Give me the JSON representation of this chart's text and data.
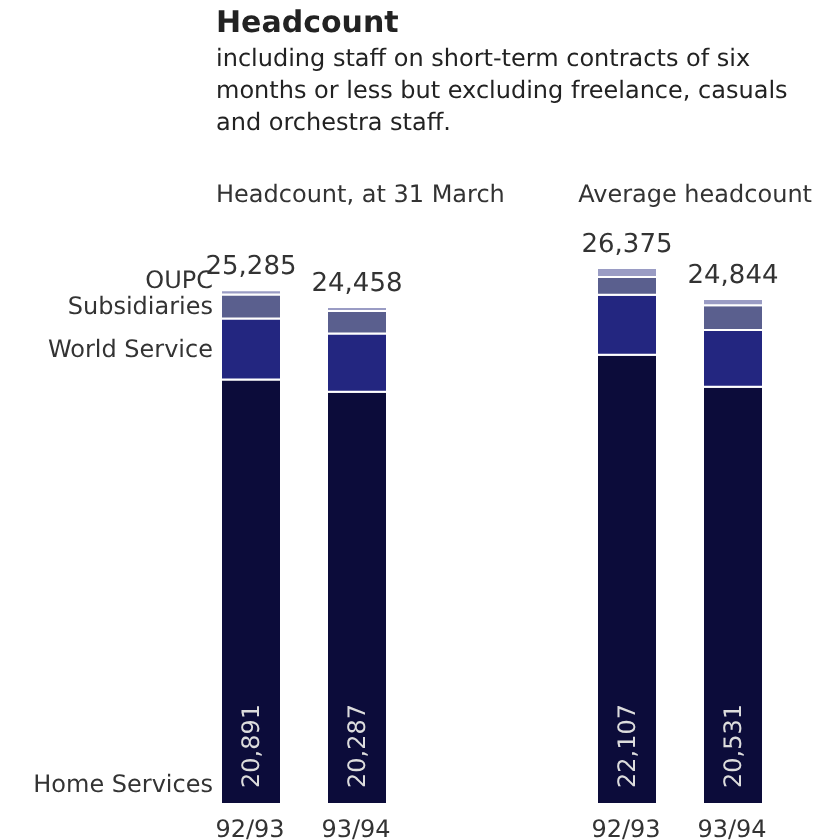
{
  "chart_data": {
    "type": "bar",
    "stacked": true,
    "title": "Headcount",
    "subtitle": "including staff on short-term contracts of six months or less but excluding freelance, casuals and orchestra staff.",
    "annotations": [
      "Headcount, at 31 March",
      "Average headcount"
    ],
    "categories": [
      "92/93",
      "93/94",
      "92/93",
      "93/94"
    ],
    "series": [
      {
        "name": "Home Services",
        "color": "#0c0c3a",
        "values": [
          20891,
          20287,
          22107,
          20531
        ],
        "value_labels": [
          "20,891",
          "20,287",
          "22,107",
          "20,531"
        ]
      },
      {
        "name": "World Service",
        "color": "#232680",
        "values": [
          3000,
          2870,
          2950,
          2790
        ]
      },
      {
        "name": "Subsidiaries",
        "color": "#5a5f8e",
        "values": [
          1180,
          1100,
          870,
          1215
        ]
      },
      {
        "name": "OUPC",
        "color": "#9a9cc4",
        "values": [
          214,
          201,
          448,
          308
        ]
      }
    ],
    "totals": [
      "25,285",
      "24,458",
      "26,375",
      "24,844"
    ]
  }
}
